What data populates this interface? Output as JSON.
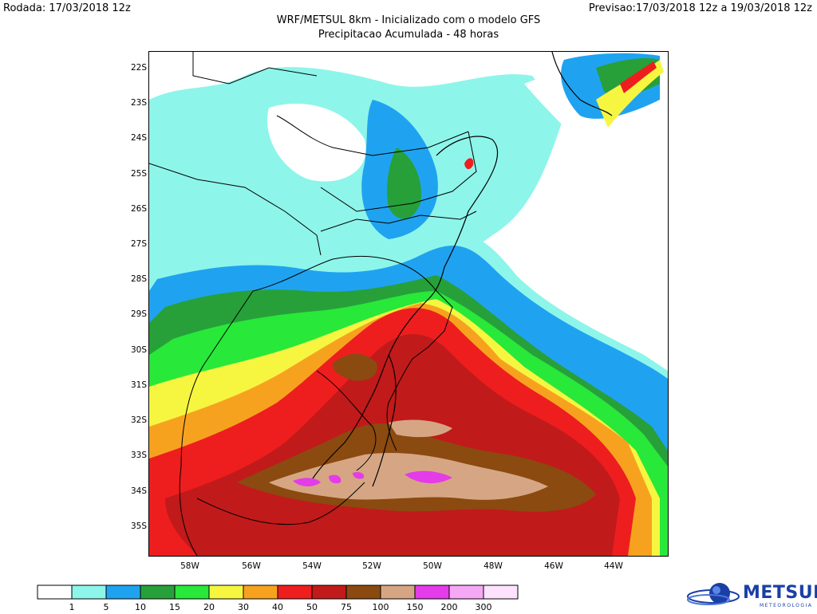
{
  "header": {
    "run": "Rodada: 17/03/2018 12z",
    "valid": "Previsao:17/03/2018 12z a 19/03/2018 12z",
    "title": "WRF/METSUL 8km - Inicializado com o modelo GFS",
    "subtitle": "Precipitacao Acumulada - 48 horas"
  },
  "axes": {
    "lat_labels": [
      "22S",
      "23S",
      "24S",
      "25S",
      "26S",
      "27S",
      "28S",
      "29S",
      "30S",
      "31S",
      "32S",
      "33S",
      "34S",
      "35S"
    ],
    "lon_labels": [
      "58W",
      "56W",
      "54W",
      "52W",
      "50W",
      "48W",
      "46W",
      "44W"
    ]
  },
  "colorbar": {
    "colors": [
      "#ffffff",
      "#8ef5ea",
      "#1fa3f0",
      "#27a03a",
      "#28e83a",
      "#f6f641",
      "#f7a21f",
      "#ee1e1e",
      "#c11a1a",
      "#8b4a10",
      "#d6a684",
      "#e43ce8",
      "#f5a8f5",
      "#fde2fd"
    ],
    "labels": [
      "1",
      "5",
      "10",
      "15",
      "20",
      "30",
      "40",
      "50",
      "75",
      "100",
      "150",
      "200",
      "300"
    ]
  },
  "brand": {
    "name": "METSUL",
    "tagline": "METEOROLOGIA",
    "color": "#1a3fa6"
  }
}
